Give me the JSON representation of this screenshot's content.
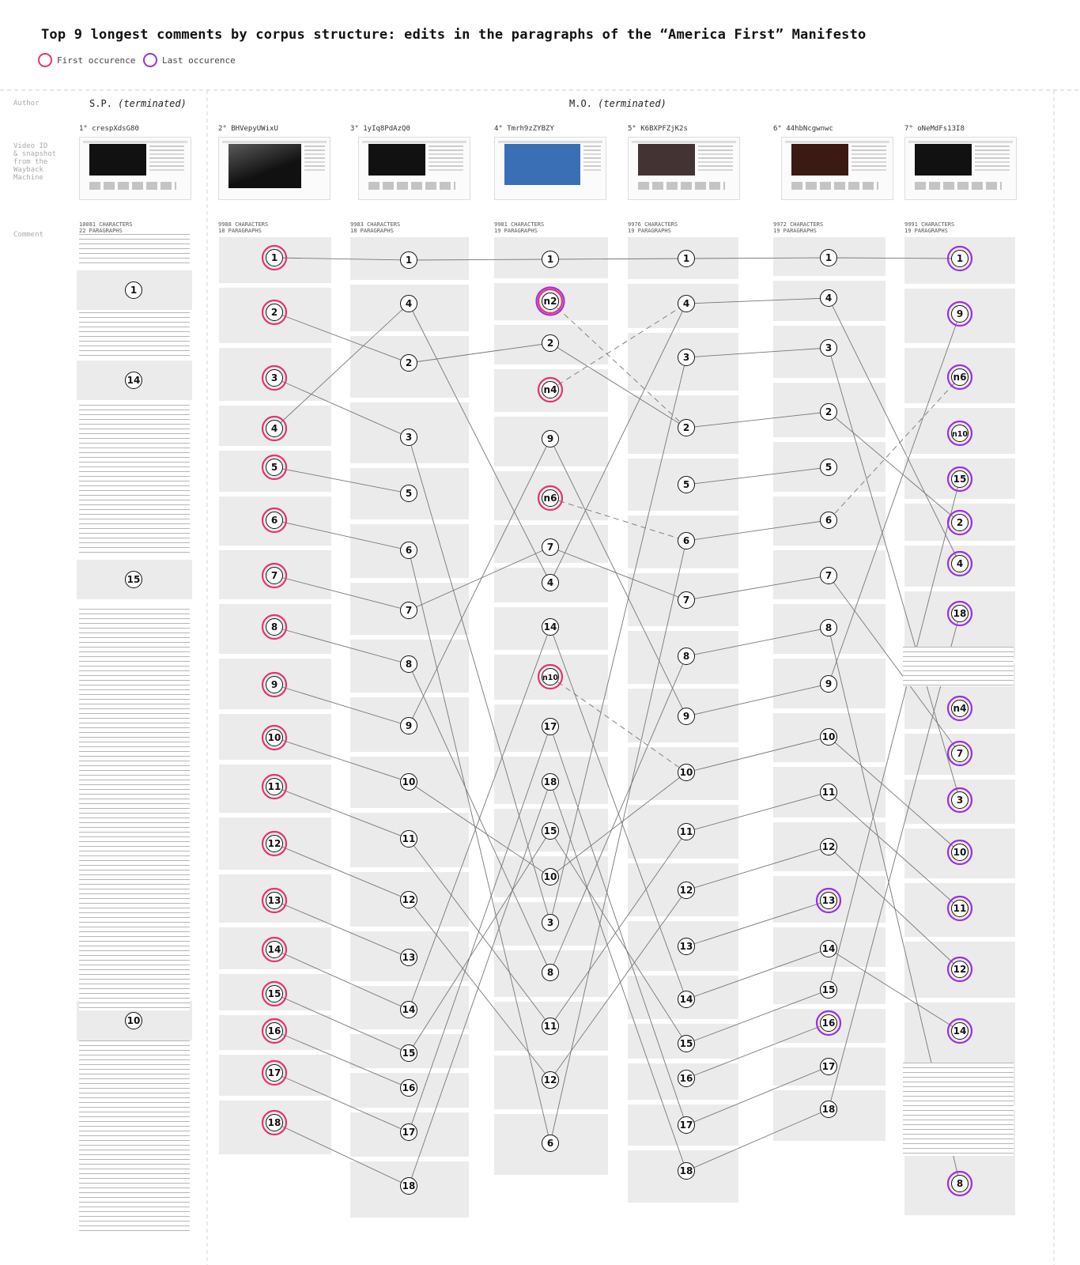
{
  "title": "Top 9 longest comments by corpus structure: edits in the paragraphs of the “America First” Manifesto",
  "legend": {
    "first": "First occurence",
    "last": "Last occurence",
    "first_color": "#e8336d",
    "last_color": "#9b30e6"
  },
  "row_labels": {
    "author": "Author",
    "video": "Video ID\n& snapshot\nfrom the\nWayback\nMachine",
    "comment": "Comment"
  },
  "authors": [
    {
      "name": "S.P.",
      "status": "(terminated)"
    },
    {
      "name": "M.O.",
      "status": "(terminated)"
    }
  ],
  "columns": [
    {
      "header": "1° crespXdsG80",
      "meta": "10081 CHARACTERS\n22 PARAGRAPHS",
      "thumb": "dark"
    },
    {
      "header": "2° BHVepyUWixU",
      "meta": "9988 CHARACTERS\n18 PARAGRAPHS",
      "thumb": "infowars"
    },
    {
      "header": "3° 1yIq8PdAzQ0",
      "meta": "9983 CHARACTERS\n18 PARAGRAPHS",
      "thumb": "dark"
    },
    {
      "header": "4° Tmrh9zZYBZY",
      "meta": "9981 CHARACTERS\n19 PARAGRAPHS",
      "thumb": "blue"
    },
    {
      "header": "5° K6BXPFZjK2s",
      "meta": "9976 CHARACTERS\n19 PARAGRAPHS",
      "thumb": "dark"
    },
    {
      "header": "6° 44hbNcgwnwc",
      "meta": "9972 CHARACTERS\n19 PARAGRAPHS",
      "thumb": "dark"
    },
    {
      "header": "7° oNeMdFs13I8",
      "meta": "9991 CHARACTERS\n19 PARAGRAPHS",
      "thumb": "dark"
    }
  ],
  "col1_nodes": [
    "1",
    "14",
    "15",
    "10"
  ],
  "paragraphs": [
    [
      "1",
      "2",
      "3",
      "4",
      "5",
      "6",
      "7",
      "8",
      "9",
      "10",
      "11",
      "12",
      "13",
      "14",
      "15",
      "16",
      "17",
      "18"
    ],
    [
      "1",
      "4",
      "2",
      "3",
      "5",
      "6",
      "7",
      "8",
      "9",
      "10",
      "11",
      "12",
      "13",
      "14",
      "15",
      "16",
      "17",
      "18"
    ],
    [
      "1",
      "n2",
      "2",
      "n4",
      "9",
      "n6",
      "7",
      "4",
      "14",
      "n10",
      "17",
      "18",
      "15",
      "10",
      "3",
      "8",
      "11",
      "12",
      "6"
    ],
    [
      "1",
      "4",
      "3",
      "2",
      "5",
      "6",
      "7",
      "8",
      "9",
      "10",
      "11",
      "12",
      "13",
      "14",
      "15",
      "16",
      "17",
      "18"
    ],
    [
      "1",
      "4",
      "3",
      "2",
      "5",
      "6",
      "7",
      "8",
      "9",
      "10",
      "11",
      "12",
      "13",
      "14",
      "15",
      "16",
      "17",
      "18"
    ],
    [
      "1",
      "9",
      "n6",
      "n10",
      "15",
      "2",
      "4",
      "18",
      "n4",
      "7",
      "3",
      "10",
      "11",
      "12",
      "14",
      "8"
    ]
  ],
  "first_marks": [
    [
      "1",
      "2",
      "3",
      "4",
      "5",
      "6",
      "7",
      "8",
      "9",
      "10",
      "11",
      "12",
      "13",
      "14",
      "15",
      "16",
      "17",
      "18"
    ],
    [],
    [
      "n2",
      "n4",
      "n6",
      "n10"
    ],
    [],
    [],
    []
  ],
  "last_marks": [
    [],
    [],
    [
      "n2"
    ],
    [],
    [
      "13",
      "16"
    ],
    [
      "1",
      "9",
      "n6",
      "n10",
      "15",
      "2",
      "4",
      "18",
      "n4",
      "7",
      "3",
      "10",
      "11",
      "12",
      "14",
      "8"
    ]
  ]
}
